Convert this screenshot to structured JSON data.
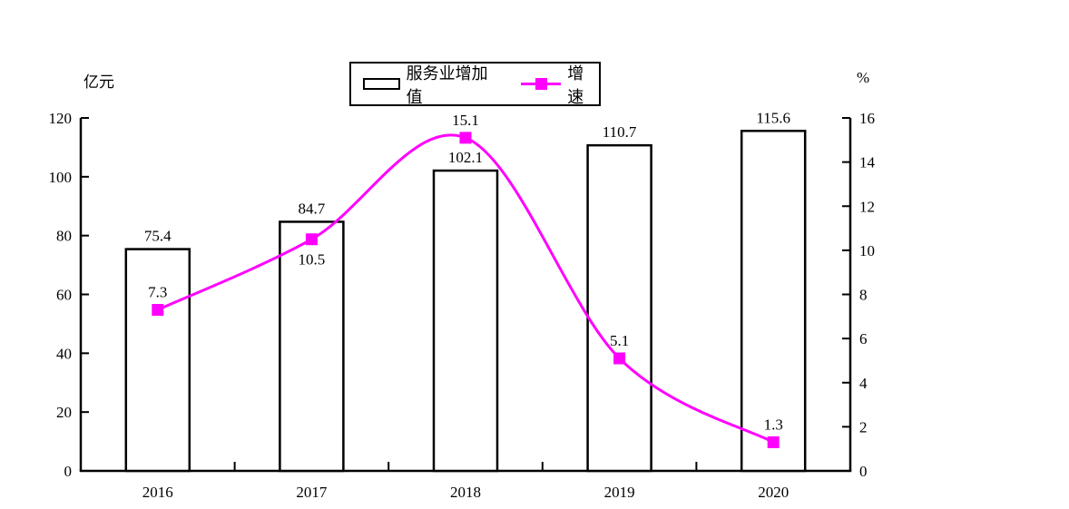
{
  "chart_data": {
    "type": "bar",
    "subtype": "combo-bar-line",
    "categories": [
      "2016",
      "2017",
      "2018",
      "2019",
      "2020"
    ],
    "series": [
      {
        "name": "服务业增加值",
        "type": "bar",
        "axis": "left",
        "values": [
          75.4,
          84.7,
          102.1,
          110.7,
          115.6
        ],
        "labels": [
          "75.4",
          "84.7",
          "102.1",
          "110.7",
          "115.6"
        ],
        "fill": "#ffffff",
        "stroke": "#000000"
      },
      {
        "name": "增速",
        "type": "line",
        "axis": "right",
        "values": [
          7.3,
          10.5,
          15.1,
          5.1,
          1.3
        ],
        "labels": [
          "7.3",
          "10.5",
          "15.1",
          "5.1",
          "1.3"
        ],
        "label_positions": [
          "above",
          "below",
          "above",
          "above",
          "above"
        ],
        "color": "#ff00ff",
        "marker": "square",
        "smooth": true
      }
    ],
    "left_axis": {
      "title": "亿元",
      "min": 0,
      "max": 120,
      "step": 20,
      "tick_labels": [
        "0",
        "20",
        "40",
        "60",
        "80",
        "100",
        "120"
      ]
    },
    "right_axis": {
      "title": "%",
      "min": 0,
      "max": 16,
      "step": 2,
      "tick_labels": [
        "0",
        "2",
        "4",
        "6",
        "8",
        "10",
        "12",
        "14",
        "16"
      ]
    },
    "legend": {
      "position": "top",
      "entries": [
        "服务业增加值",
        "增速"
      ]
    },
    "grid": false
  },
  "colors": {
    "line": "#ff00ff",
    "axis": "#000000",
    "text": "#000000",
    "background": "#ffffff"
  }
}
